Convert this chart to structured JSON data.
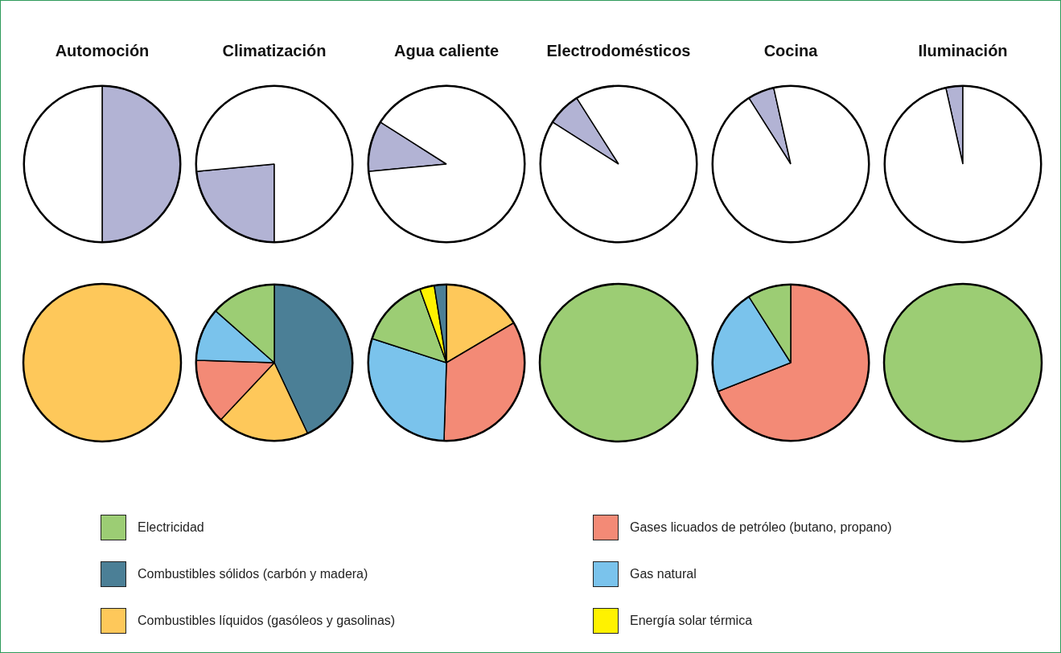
{
  "chart_data": [
    {
      "type": "pie",
      "title": "Automoción",
      "categories": [
        null,
        null
      ],
      "values": [
        50,
        50
      ],
      "colors": [
        "#b2b3d4",
        "#ffffff"
      ]
    },
    {
      "type": "pie",
      "title": "Climatización",
      "categories": [
        null,
        null
      ],
      "values": [
        23.5,
        76.5
      ],
      "colors": [
        "#b2b3d4",
        "#ffffff"
      ]
    },
    {
      "type": "pie",
      "title": "Agua caliente",
      "categories": [
        null,
        null
      ],
      "values": [
        10.5,
        89.5
      ],
      "colors": [
        "#b2b3d4",
        "#ffffff"
      ]
    },
    {
      "type": "pie",
      "title": "Electrodomésticos",
      "categories": [
        null,
        null
      ],
      "values": [
        7,
        93
      ],
      "colors": [
        "#b2b3d4",
        "#ffffff"
      ]
    },
    {
      "type": "pie",
      "title": "Cocina",
      "categories": [
        null,
        null
      ],
      "values": [
        5.5,
        94.5
      ],
      "colors": [
        "#b2b3d4",
        "#ffffff"
      ]
    },
    {
      "type": "pie",
      "title": "Iluminación",
      "categories": [
        null,
        null
      ],
      "values": [
        3.5,
        96.5
      ],
      "colors": [
        "#b2b3d4",
        "#ffffff"
      ]
    },
    {
      "type": "pie",
      "categories": [
        null
      ],
      "values": [
        100
      ],
      "colors": [
        "#fec85a"
      ]
    },
    {
      "type": "pie",
      "categories": [
        null,
        null,
        null,
        null,
        null
      ],
      "values": [
        43,
        19,
        13.5,
        11,
        13.5
      ],
      "colors": [
        "#4b7f96",
        "#fec85a",
        "#f38a76",
        "#7ac3ec",
        "#9ccd74"
      ]
    },
    {
      "type": "pie",
      "legend": "bottom",
      "categories": [
        "Combustibles líquidos (gasóleos y gasolinas)",
        "Gases licuados de petróleo (butano, propano)",
        "Gas natural",
        "Electricidad",
        "Energía solar térmica",
        "Combustibles sólidos (carbón y madera)"
      ],
      "values": [
        16.5,
        34,
        29.5,
        14.5,
        3,
        2.5
      ],
      "colors": [
        "#fec85a",
        "#f38a76",
        "#7ac3ec",
        "#9ccd74",
        "#fff200",
        "#4b7f96"
      ]
    },
    {
      "type": "pie",
      "categories": [
        null
      ],
      "values": [
        100
      ],
      "colors": [
        "#9ccd74"
      ]
    },
    {
      "type": "pie",
      "categories": [
        null,
        null,
        null
      ],
      "values": [
        69,
        22,
        9
      ],
      "colors": [
        "#f38a76",
        "#7ac3ec",
        "#9ccd74"
      ]
    },
    {
      "type": "pie",
      "categories": [
        null
      ],
      "values": [
        100
      ],
      "colors": [
        "#9ccd74"
      ]
    }
  ]
}
